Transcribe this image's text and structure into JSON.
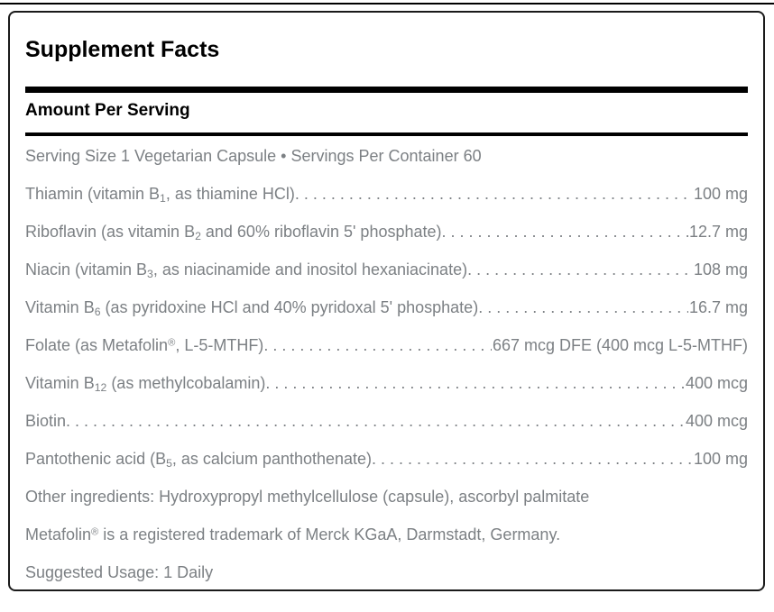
{
  "panel": {
    "title": "Supplement Facts",
    "amount_header": "Amount Per Serving",
    "serving_line": "Serving Size 1 Vegetarian Capsule • Servings Per Container 60",
    "rows": [
      {
        "parts": [
          {
            "text": "Thiamin (vitamin B",
            "style": "normal"
          },
          {
            "text": "1",
            "style": "sub"
          },
          {
            "text": ", as thiamine HCl)",
            "style": "normal"
          }
        ],
        "amount": "100 mg"
      },
      {
        "parts": [
          {
            "text": "Riboflavin (as vitamin B",
            "style": "normal"
          },
          {
            "text": "2",
            "style": "sub"
          },
          {
            "text": " and 60% riboflavin 5' phosphate)",
            "style": "normal"
          }
        ],
        "amount": "12.7 mg"
      },
      {
        "parts": [
          {
            "text": "Niacin (vitamin B",
            "style": "normal"
          },
          {
            "text": "3",
            "style": "sub"
          },
          {
            "text": ", as niacinamide and inositol hexaniacinate)",
            "style": "normal"
          }
        ],
        "amount": "108 mg"
      },
      {
        "parts": [
          {
            "text": "Vitamin B",
            "style": "normal"
          },
          {
            "text": "6",
            "style": "sub"
          },
          {
            "text": " (as pyridoxine HCl and 40% pyridoxal 5' phosphate)",
            "style": "normal"
          }
        ],
        "amount": "16.7 mg"
      },
      {
        "parts": [
          {
            "text": "Folate (as Metafolin",
            "style": "normal"
          },
          {
            "text": "®",
            "style": "sup"
          },
          {
            "text": ", L-5-MTHF)",
            "style": "normal"
          }
        ],
        "amount": "667 mcg DFE (400 mcg L-5-MTHF)"
      },
      {
        "parts": [
          {
            "text": "Vitamin B",
            "style": "normal"
          },
          {
            "text": "12",
            "style": "sub"
          },
          {
            "text": " (as methylcobalamin)",
            "style": "normal"
          }
        ],
        "amount": "400 mcg"
      },
      {
        "parts": [
          {
            "text": "Biotin",
            "style": "normal"
          }
        ],
        "amount": "400 mcg"
      },
      {
        "parts": [
          {
            "text": "Pantothenic acid (B",
            "style": "normal"
          },
          {
            "text": "5",
            "style": "sub"
          },
          {
            "text": ", as calcium panthothenate)",
            "style": "normal"
          }
        ],
        "amount": "100 mg"
      }
    ],
    "footnotes": [
      {
        "parts": [
          {
            "text": "Other ingredients: Hydroxypropyl methylcellulose (capsule), ascorbyl palmitate",
            "style": "normal"
          }
        ]
      },
      {
        "parts": [
          {
            "text": "Metafolin",
            "style": "normal"
          },
          {
            "text": "®",
            "style": "sup"
          },
          {
            "text": " is a registered trademark of Merck KGaA, Darmstadt, Germany.",
            "style": "normal"
          }
        ]
      },
      {
        "parts": [
          {
            "text": "Suggested Usage: 1 Daily",
            "style": "normal"
          }
        ]
      }
    ],
    "colors": {
      "body_text": "#7c8084",
      "heading_text": "#000000",
      "divider": "#000000",
      "panel_border": "#1a1a1a",
      "page_bg": "#ffffff"
    }
  }
}
